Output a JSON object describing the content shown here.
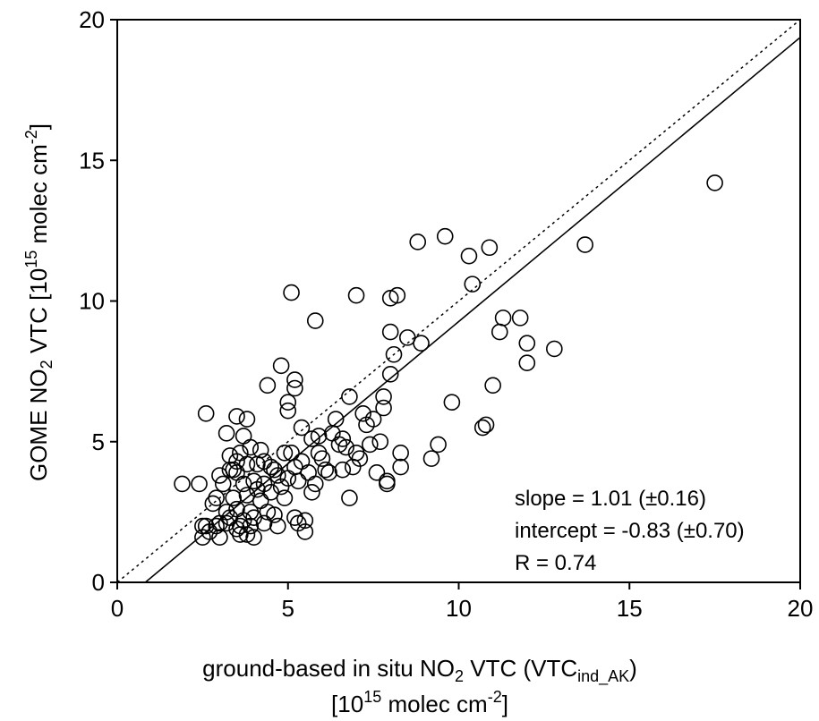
{
  "chart_data": {
    "type": "scatter",
    "xlabel_line1": {
      "pre": "ground-based in situ NO",
      "sub1": "2",
      "mid": " VTC (VTC",
      "sub2": "ind_AK",
      "post": ")"
    },
    "xlabel_line2": {
      "pre": "[10",
      "sup1": "15",
      "mid": " molec cm",
      "sup2": "-2",
      "post": "]"
    },
    "ylabel": {
      "pre": "GOME NO",
      "sub1": "2",
      "mid": " VTC [10",
      "sup1": "15",
      "mid2": " molec cm",
      "sup2": "-2",
      "post": "]"
    },
    "xlim": [
      0,
      20
    ],
    "ylim": [
      0,
      20
    ],
    "xticks": [
      0,
      5,
      10,
      15,
      20
    ],
    "yticks": [
      0,
      5,
      10,
      15,
      20
    ],
    "grid": false,
    "stats": {
      "slope": "slope = 1.01 (±0.16)",
      "intercept": "intercept = -0.83 (±0.70)",
      "r": "R = 0.74"
    },
    "fit_line": {
      "slope": 1.01,
      "intercept": -0.83,
      "style": "solid"
    },
    "reference_line": {
      "slope": 1,
      "intercept": 0,
      "style": "dotted"
    },
    "points": [
      [
        1.9,
        3.5
      ],
      [
        2.4,
        3.5
      ],
      [
        2.6,
        6.0
      ],
      [
        2.5,
        2.0
      ],
      [
        2.5,
        1.6
      ],
      [
        2.6,
        2.0
      ],
      [
        2.7,
        1.8
      ],
      [
        2.8,
        2.8
      ],
      [
        2.9,
        3.0
      ],
      [
        2.9,
        2.0
      ],
      [
        3.0,
        3.8
      ],
      [
        3.0,
        2.1
      ],
      [
        3.0,
        1.6
      ],
      [
        3.1,
        3.5
      ],
      [
        3.2,
        5.3
      ],
      [
        3.2,
        2.5
      ],
      [
        3.2,
        2.1
      ],
      [
        3.3,
        4.5
      ],
      [
        3.3,
        4.0
      ],
      [
        3.3,
        2.3
      ],
      [
        3.4,
        3.0
      ],
      [
        3.4,
        4.0
      ],
      [
        3.5,
        4.3
      ],
      [
        3.5,
        3.9
      ],
      [
        3.5,
        2.6
      ],
      [
        3.5,
        1.9
      ],
      [
        3.5,
        5.9
      ],
      [
        3.6,
        4.6
      ],
      [
        3.6,
        2.0
      ],
      [
        3.6,
        1.7
      ],
      [
        3.7,
        5.2
      ],
      [
        3.7,
        3.5
      ],
      [
        3.7,
        2.2
      ],
      [
        3.8,
        5.8
      ],
      [
        3.8,
        4.2
      ],
      [
        3.8,
        3.1
      ],
      [
        3.8,
        1.7
      ],
      [
        3.9,
        2.5
      ],
      [
        3.9,
        2.0
      ],
      [
        3.9,
        4.8
      ],
      [
        4.0,
        3.6
      ],
      [
        4.0,
        2.3
      ],
      [
        4.0,
        1.6
      ],
      [
        4.1,
        4.2
      ],
      [
        4.1,
        3.3
      ],
      [
        4.2,
        4.7
      ],
      [
        4.2,
        2.9
      ],
      [
        4.3,
        4.3
      ],
      [
        4.3,
        3.5
      ],
      [
        4.3,
        2.1
      ],
      [
        4.4,
        7.0
      ],
      [
        4.4,
        2.5
      ],
      [
        4.5,
        4.1
      ],
      [
        4.5,
        3.2
      ],
      [
        4.6,
        4.0
      ],
      [
        4.6,
        2.4
      ],
      [
        4.7,
        3.8
      ],
      [
        4.7,
        2.0
      ],
      [
        4.8,
        7.7
      ],
      [
        4.8,
        3.4
      ],
      [
        4.9,
        4.6
      ],
      [
        4.9,
        3.0
      ],
      [
        5.0,
        6.1
      ],
      [
        5.0,
        3.7
      ],
      [
        5.0,
        6.4
      ],
      [
        5.1,
        10.3
      ],
      [
        5.1,
        4.6
      ],
      [
        5.2,
        7.2
      ],
      [
        5.2,
        6.9
      ],
      [
        5.2,
        4.1
      ],
      [
        5.2,
        2.3
      ],
      [
        5.3,
        3.6
      ],
      [
        5.3,
        2.1
      ],
      [
        5.4,
        5.5
      ],
      [
        5.4,
        4.3
      ],
      [
        5.5,
        1.8
      ],
      [
        5.5,
        2.2
      ],
      [
        5.6,
        3.9
      ],
      [
        5.7,
        5.1
      ],
      [
        5.7,
        3.2
      ],
      [
        5.8,
        9.3
      ],
      [
        5.8,
        3.5
      ],
      [
        5.9,
        5.2
      ],
      [
        5.9,
        4.6
      ],
      [
        6.0,
        4.4
      ],
      [
        6.1,
        4.0
      ],
      [
        6.2,
        3.9
      ],
      [
        6.3,
        5.3
      ],
      [
        6.4,
        5.8
      ],
      [
        6.5,
        4.9
      ],
      [
        6.6,
        5.1
      ],
      [
        6.6,
        4.0
      ],
      [
        6.7,
        4.8
      ],
      [
        6.8,
        6.6
      ],
      [
        6.8,
        3.0
      ],
      [
        6.9,
        4.1
      ],
      [
        7.0,
        10.2
      ],
      [
        7.0,
        4.6
      ],
      [
        7.1,
        4.4
      ],
      [
        7.2,
        6.0
      ],
      [
        7.3,
        5.6
      ],
      [
        7.4,
        4.9
      ],
      [
        7.5,
        5.8
      ],
      [
        7.6,
        3.9
      ],
      [
        7.7,
        5.0
      ],
      [
        7.8,
        6.6
      ],
      [
        7.8,
        6.2
      ],
      [
        7.9,
        3.5
      ],
      [
        7.9,
        3.6
      ],
      [
        8.0,
        10.1
      ],
      [
        8.0,
        8.9
      ],
      [
        8.0,
        7.4
      ],
      [
        8.1,
        8.1
      ],
      [
        8.2,
        10.2
      ],
      [
        8.3,
        4.1
      ],
      [
        8.3,
        4.6
      ],
      [
        8.5,
        8.7
      ],
      [
        8.8,
        12.1
      ],
      [
        8.9,
        8.5
      ],
      [
        9.2,
        4.4
      ],
      [
        9.4,
        4.9
      ],
      [
        9.6,
        12.3
      ],
      [
        9.8,
        6.4
      ],
      [
        10.3,
        11.6
      ],
      [
        10.4,
        10.6
      ],
      [
        10.7,
        5.5
      ],
      [
        10.8,
        5.6
      ],
      [
        10.9,
        11.9
      ],
      [
        11.0,
        7.0
      ],
      [
        11.2,
        8.9
      ],
      [
        11.3,
        9.4
      ],
      [
        11.8,
        9.4
      ],
      [
        12.0,
        8.5
      ],
      [
        12.0,
        7.8
      ],
      [
        12.8,
        8.3
      ],
      [
        13.7,
        12.0
      ],
      [
        17.5,
        14.2
      ]
    ]
  }
}
